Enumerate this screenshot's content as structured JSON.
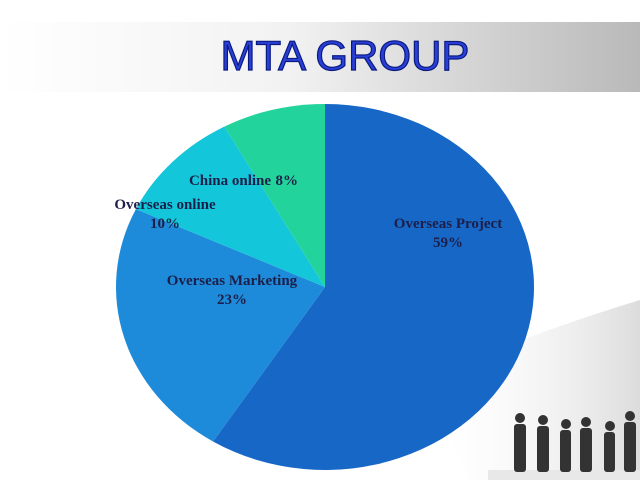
{
  "chart_data": {
    "type": "pie",
    "title": "MTA GROUP",
    "categories": [
      "Overseas Project",
      "Overseas Marketing",
      "Overseas online",
      "China online"
    ],
    "values": [
      59,
      23,
      10,
      8
    ],
    "value_labels": [
      "59%",
      "23%",
      "10%",
      "8%"
    ],
    "colors": [
      "#1767c6",
      "#1d8bd9",
      "#14c6da",
      "#22d49c"
    ]
  }
}
